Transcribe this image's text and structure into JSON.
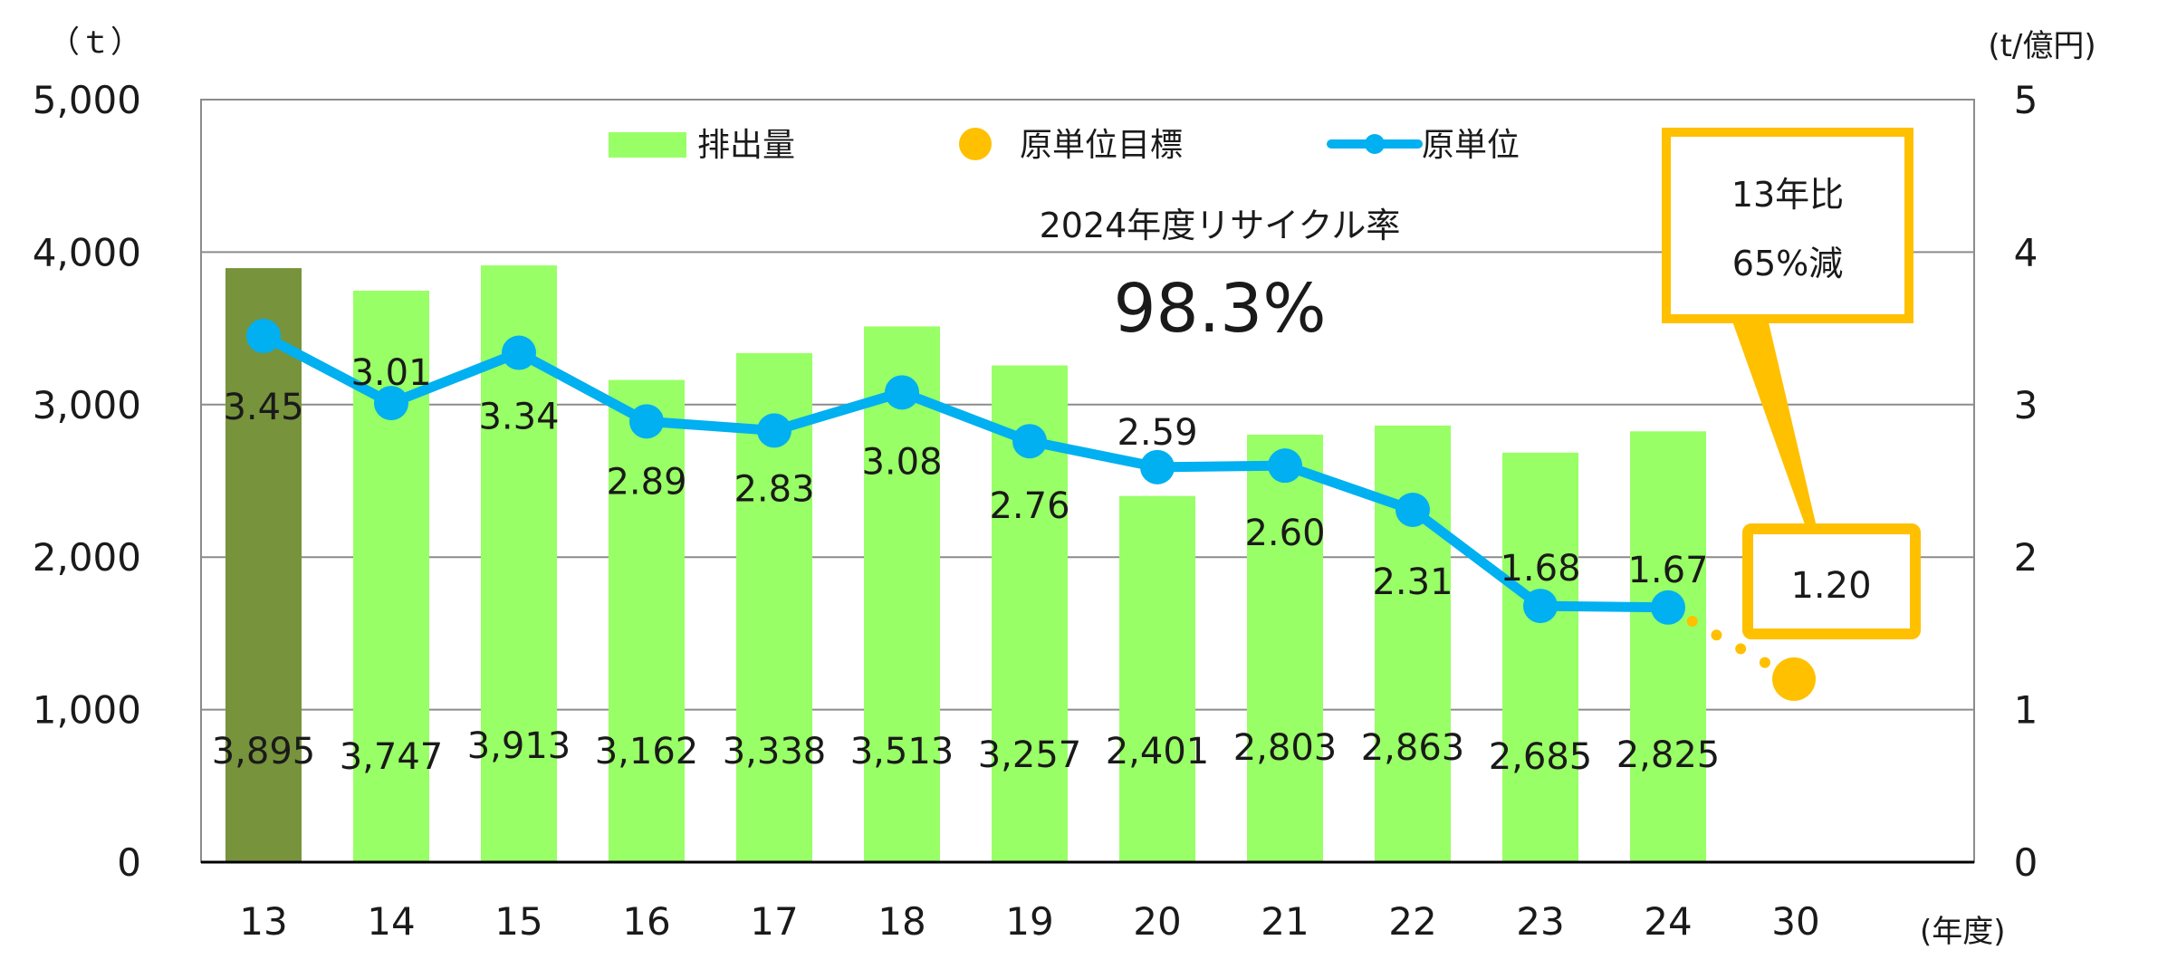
{
  "chart_data": {
    "type": "bar",
    "categories": [
      "13",
      "14",
      "15",
      "16",
      "17",
      "18",
      "19",
      "20",
      "21",
      "22",
      "23",
      "24",
      "30"
    ],
    "series": [
      {
        "name": "排出量",
        "kind": "bar",
        "axis": "left",
        "values": [
          3895,
          3747,
          3913,
          3162,
          3338,
          3513,
          3257,
          2401,
          2803,
          2863,
          2685,
          2825,
          null
        ],
        "labels": [
          "3,895",
          "3,747",
          "3,913",
          "3,162",
          "3,338",
          "3,513",
          "3,257",
          "2,401",
          "2,803",
          "2,863",
          "2,685",
          "2,825",
          ""
        ],
        "color": "#99ff66",
        "highlight": {
          "index": 0,
          "color": "#77933c"
        }
      },
      {
        "name": "原単位",
        "kind": "line",
        "axis": "right",
        "values": [
          3.45,
          3.01,
          3.34,
          2.89,
          2.83,
          3.08,
          2.76,
          2.59,
          2.6,
          2.31,
          1.68,
          1.67,
          null
        ],
        "labels": [
          "3.45",
          "3.01",
          "3.34",
          "2.89",
          "2.83",
          "3.08",
          "2.76",
          "2.59",
          "2.60",
          "2.31",
          "1.68",
          "1.67",
          ""
        ],
        "color": "#00b0f0"
      },
      {
        "name": "原単位目標",
        "kind": "point",
        "axis": "right",
        "values": [
          null,
          null,
          null,
          null,
          null,
          null,
          null,
          null,
          null,
          null,
          null,
          null,
          1.2
        ],
        "color": "#ffc000"
      }
    ],
    "y_left": {
      "unit": "（ｔ）",
      "ticks": [
        "0",
        "1,000",
        "2,000",
        "3,000",
        "4,000",
        "5,000"
      ],
      "ylim": [
        0,
        5000
      ]
    },
    "y_right": {
      "unit": "(t/億円)",
      "ticks": [
        "0",
        "1",
        "2",
        "3",
        "4",
        "5"
      ],
      "ylim": [
        0,
        5
      ]
    },
    "xlabel": "(年度)",
    "grid": true,
    "legend_position": "top-center",
    "annotations": {
      "recycle_title": "2024年度リサイクル率",
      "recycle_value": "98.3%",
      "callout_line1": "13年比",
      "callout_line2": "65%減",
      "target_label": "1.20"
    },
    "colors": {
      "callout_border": "#ffc000",
      "grid": "#8c8c8c",
      "axis": "#000000"
    }
  }
}
